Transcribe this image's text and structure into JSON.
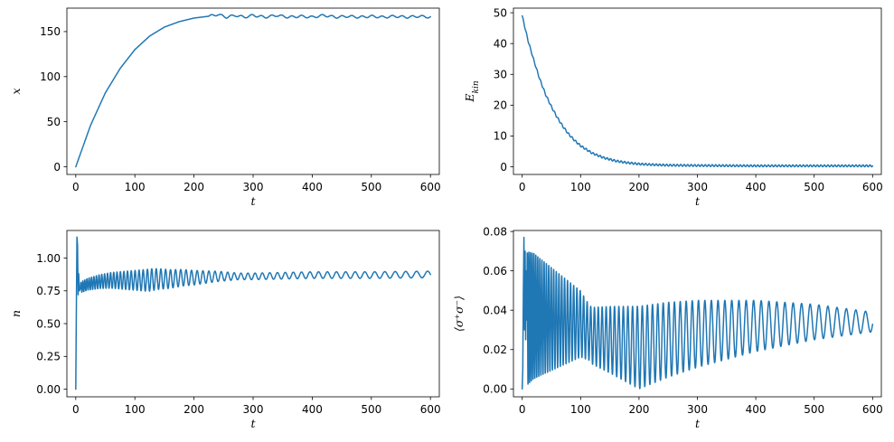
{
  "figure": {
    "line_color": "#1f77b4",
    "background": "#ffffff"
  },
  "chart_data": [
    {
      "id": "x",
      "type": "line",
      "title": "",
      "xlabel": "t",
      "ylabel": "x",
      "ylabel_sub": "",
      "xlim": [
        -15,
        615
      ],
      "ylim": [
        -8.5,
        176
      ],
      "xticks": [
        0,
        100,
        200,
        300,
        400,
        500,
        600
      ],
      "yticks": [
        0,
        50,
        100,
        150
      ],
      "ytick_labels": [
        "0",
        "50",
        "100",
        "150"
      ],
      "grid": false,
      "series": [
        {
          "x": [
            0,
            25,
            50,
            75,
            100,
            125,
            150,
            175,
            200,
            225,
            240,
            255,
            270,
            285,
            300,
            320,
            340,
            360,
            380,
            400,
            420,
            440,
            460,
            480,
            500,
            520,
            540,
            560,
            580,
            600
          ],
          "y": [
            0,
            46,
            82,
            109,
            130,
            145,
            155,
            161,
            165,
            167,
            169,
            166,
            168,
            166,
            168,
            166,
            168,
            166,
            167,
            166,
            168,
            166,
            167,
            166,
            167,
            166,
            167,
            166,
            167,
            166
          ],
          "osc": {
            "start": 225,
            "amp": 1.2,
            "period": 17
          }
        }
      ]
    },
    {
      "id": "ekin",
      "type": "line",
      "title": "",
      "xlabel": "t",
      "ylabel": "E",
      "ylabel_sub": "kin",
      "xlim": [
        -15,
        615
      ],
      "ylim": [
        -2.5,
        51.5
      ],
      "xticks": [
        0,
        100,
        200,
        300,
        400,
        500,
        600
      ],
      "yticks": [
        0,
        10,
        20,
        30,
        40,
        50
      ],
      "ytick_labels": [
        "0",
        "10",
        "20",
        "30",
        "40",
        "50"
      ],
      "grid": false,
      "series": [
        {
          "x": [
            0,
            10,
            20,
            30,
            40,
            50,
            60,
            70,
            80,
            90,
            100,
            120,
            140,
            160,
            180,
            200,
            220,
            250,
            300,
            350,
            400,
            450,
            500,
            550,
            600
          ],
          "y": [
            49,
            41,
            34.5,
            28.5,
            23.5,
            19.5,
            16,
            13,
            10.5,
            8.5,
            6.8,
            4.4,
            2.9,
            1.9,
            1.3,
            0.9,
            0.7,
            0.5,
            0.4,
            0.35,
            0.3,
            0.3,
            0.3,
            0.3,
            0.3
          ],
          "osc": {
            "start": 0,
            "amp": 0.3,
            "period": 6
          }
        }
      ]
    },
    {
      "id": "n",
      "type": "line",
      "title": "",
      "xlabel": "t",
      "ylabel": "n",
      "ylabel_sub": "",
      "xlim": [
        -15,
        615
      ],
      "ylim": [
        -0.058,
        1.21
      ],
      "xticks": [
        0,
        100,
        200,
        300,
        400,
        500,
        600
      ],
      "yticks": [
        0,
        0.25,
        0.5,
        0.75,
        1.0
      ],
      "ytick_labels": [
        "0.00",
        "0.25",
        "0.50",
        "0.75",
        "1.00"
      ],
      "grid": false,
      "series": [
        {
          "x": [
            0,
            1,
            2,
            3,
            4,
            5,
            6,
            8,
            10,
            20,
            40,
            60,
            80,
            100,
            120,
            140,
            160,
            180,
            200,
            240,
            300,
            400,
            500,
            600
          ],
          "y": [
            0,
            0.6,
            1.16,
            1.1,
            0.72,
            0.88,
            0.75,
            0.77,
            0.78,
            0.8,
            0.82,
            0.83,
            0.83,
            0.83,
            0.83,
            0.84,
            0.84,
            0.85,
            0.85,
            0.86,
            0.86,
            0.87,
            0.87,
            0.875
          ],
          "osc": {
            "start": 8,
            "amp_start": 0.04,
            "amp_max": 0.085,
            "amp_max_at": 125,
            "amp_end": 0.025,
            "period_start": 3,
            "period_end": 19
          }
        }
      ]
    },
    {
      "id": "sigma",
      "type": "line",
      "title": "",
      "xlabel": "t",
      "ylabel": "⟨σ⁺σ⁻⟩",
      "ylabel_sub": "",
      "xlim": [
        -15,
        615
      ],
      "ylim": [
        -0.004,
        0.0805
      ],
      "xticks": [
        0,
        100,
        200,
        300,
        400,
        500,
        600
      ],
      "yticks": [
        0,
        0.02,
        0.04,
        0.06,
        0.08
      ],
      "ytick_labels": [
        "0.00",
        "0.02",
        "0.04",
        "0.06",
        "0.08"
      ],
      "grid": false,
      "series": [
        {
          "x": [
            0,
            1,
            2,
            3,
            4,
            5,
            6,
            7,
            8,
            10,
            20,
            40,
            60,
            80,
            100,
            120,
            150,
            200,
            250,
            300,
            400,
            500,
            600
          ],
          "y": [
            0,
            0.01,
            0.05,
            0.077,
            0.03,
            0.07,
            0.025,
            0.06,
            0.035,
            0.036,
            0.037,
            0.036,
            0.035,
            0.034,
            0.033,
            0.027,
            0.025,
            0.021,
            0.025,
            0.028,
            0.032,
            0.034,
            0.034
          ],
          "osc": {
            "start": 8,
            "amp_start": 0.034,
            "amp_min": 0.014,
            "amp_min_at": 115,
            "amp_max": 0.021,
            "amp_max_at": 200,
            "amp_end": 0.005,
            "period_start": 2.5,
            "period_end": 17
          }
        }
      ]
    }
  ]
}
